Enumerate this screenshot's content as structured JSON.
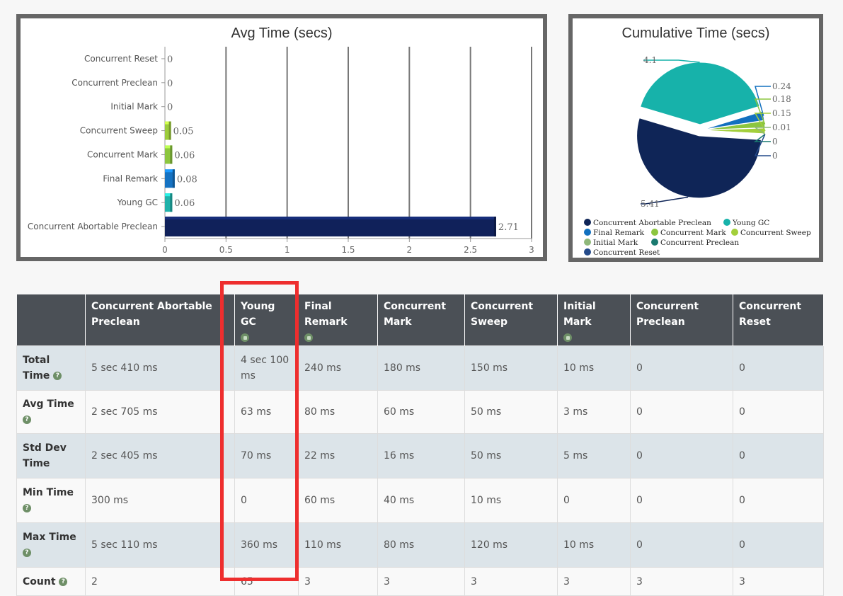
{
  "charts": [
    {
      "type": "bar",
      "title": "Avg Time (secs)",
      "categories": [
        "Concurrent Reset",
        "Concurrent Preclean",
        "Initial Mark",
        "Concurrent Sweep",
        "Concurrent Mark",
        "Final Remark",
        "Young GC",
        "Concurrent Abortable Preclean"
      ],
      "values": [
        0,
        0,
        0,
        0.05,
        0.06,
        0.08,
        0.06,
        2.71
      ],
      "value_labels": [
        "0",
        "0",
        "0",
        "0.05",
        "0.06",
        "0.08",
        "0.06",
        "2.71"
      ],
      "colors": [
        "#1f3a6e",
        "#1e7d78",
        "#7fbf4d",
        "#9ccc3c",
        "#8cc63f",
        "#1572c2",
        "#20b2aa",
        "#10215a"
      ],
      "xlim": [
        0,
        3
      ],
      "x_ticks": [
        "0",
        "0.5",
        "1",
        "1.5",
        "2",
        "2.5",
        "3"
      ],
      "grid": true
    },
    {
      "type": "pie",
      "title": "Cumulative Time (secs)",
      "slices": [
        {
          "label": "Concurrent Abortable Preclean",
          "value": 5.41,
          "display": "5.41",
          "color": "#0f2557"
        },
        {
          "label": "Young GC",
          "value": 4.1,
          "display": "4.1",
          "color": "#17b2aa"
        },
        {
          "label": "Final Remark",
          "value": 0.24,
          "display": "0.24",
          "color": "#1270bf"
        },
        {
          "label": "Concurrent Mark",
          "value": 0.18,
          "display": "0.18",
          "color": "#8cc63f"
        },
        {
          "label": "Concurrent Sweep",
          "value": 0.15,
          "display": "0.15",
          "color": "#a3cf3b"
        },
        {
          "label": "Initial Mark",
          "value": 0.01,
          "display": "0.01",
          "color": "#8fb87a"
        },
        {
          "label": "Concurrent Preclean",
          "value": 0,
          "display": "0",
          "color": "#1a7a70"
        },
        {
          "label": "Concurrent Reset",
          "value": 0,
          "display": "0",
          "color": "#244a8a"
        }
      ],
      "legend_position": "bottom-left"
    }
  ],
  "table": {
    "corner": "",
    "columns": [
      {
        "label": "Concurrent Abortable Preclean",
        "sort_icon": false
      },
      {
        "label": "Young GC",
        "sort_icon": true
      },
      {
        "label": "Final Remark",
        "sort_icon": true
      },
      {
        "label": "Concurrent Mark",
        "sort_icon": false
      },
      {
        "label": "Concurrent Sweep",
        "sort_icon": false
      },
      {
        "label": "Initial Mark",
        "sort_icon": true
      },
      {
        "label": "Concurrent Preclean",
        "sort_icon": false
      },
      {
        "label": "Concurrent Reset",
        "sort_icon": false
      }
    ],
    "rows": [
      {
        "label": "Total Time",
        "help_icon": true,
        "values": [
          "5 sec 410 ms",
          "4 sec 100 ms",
          "240 ms",
          "180 ms",
          "150 ms",
          "10 ms",
          "0",
          "0"
        ]
      },
      {
        "label": "Avg Time",
        "help_icon": true,
        "values": [
          "2 sec 705 ms",
          "63 ms",
          "80 ms",
          "60 ms",
          "50 ms",
          "3 ms",
          "0",
          "0"
        ]
      },
      {
        "label": "Std Dev Time",
        "help_icon": false,
        "values": [
          "2 sec 405 ms",
          "70 ms",
          "22 ms",
          "16 ms",
          "50 ms",
          "5 ms",
          "0",
          "0"
        ]
      },
      {
        "label": "Min Time",
        "help_icon": true,
        "values": [
          "300 ms",
          "0",
          "60 ms",
          "40 ms",
          "10 ms",
          "0",
          "0",
          "0"
        ]
      },
      {
        "label": "Max Time",
        "help_icon": true,
        "values": [
          "5 sec 110 ms",
          "360 ms",
          "110 ms",
          "80 ms",
          "120 ms",
          "10 ms",
          "0",
          "0"
        ]
      },
      {
        "label": "Count",
        "help_icon": true,
        "values": [
          "2",
          "65",
          "3",
          "3",
          "3",
          "3",
          "3",
          "3"
        ]
      }
    ]
  },
  "icons": {
    "help": "question-circle-icon",
    "sort": "sort-circle-icon"
  },
  "highlight_color": "#ee2e2e"
}
